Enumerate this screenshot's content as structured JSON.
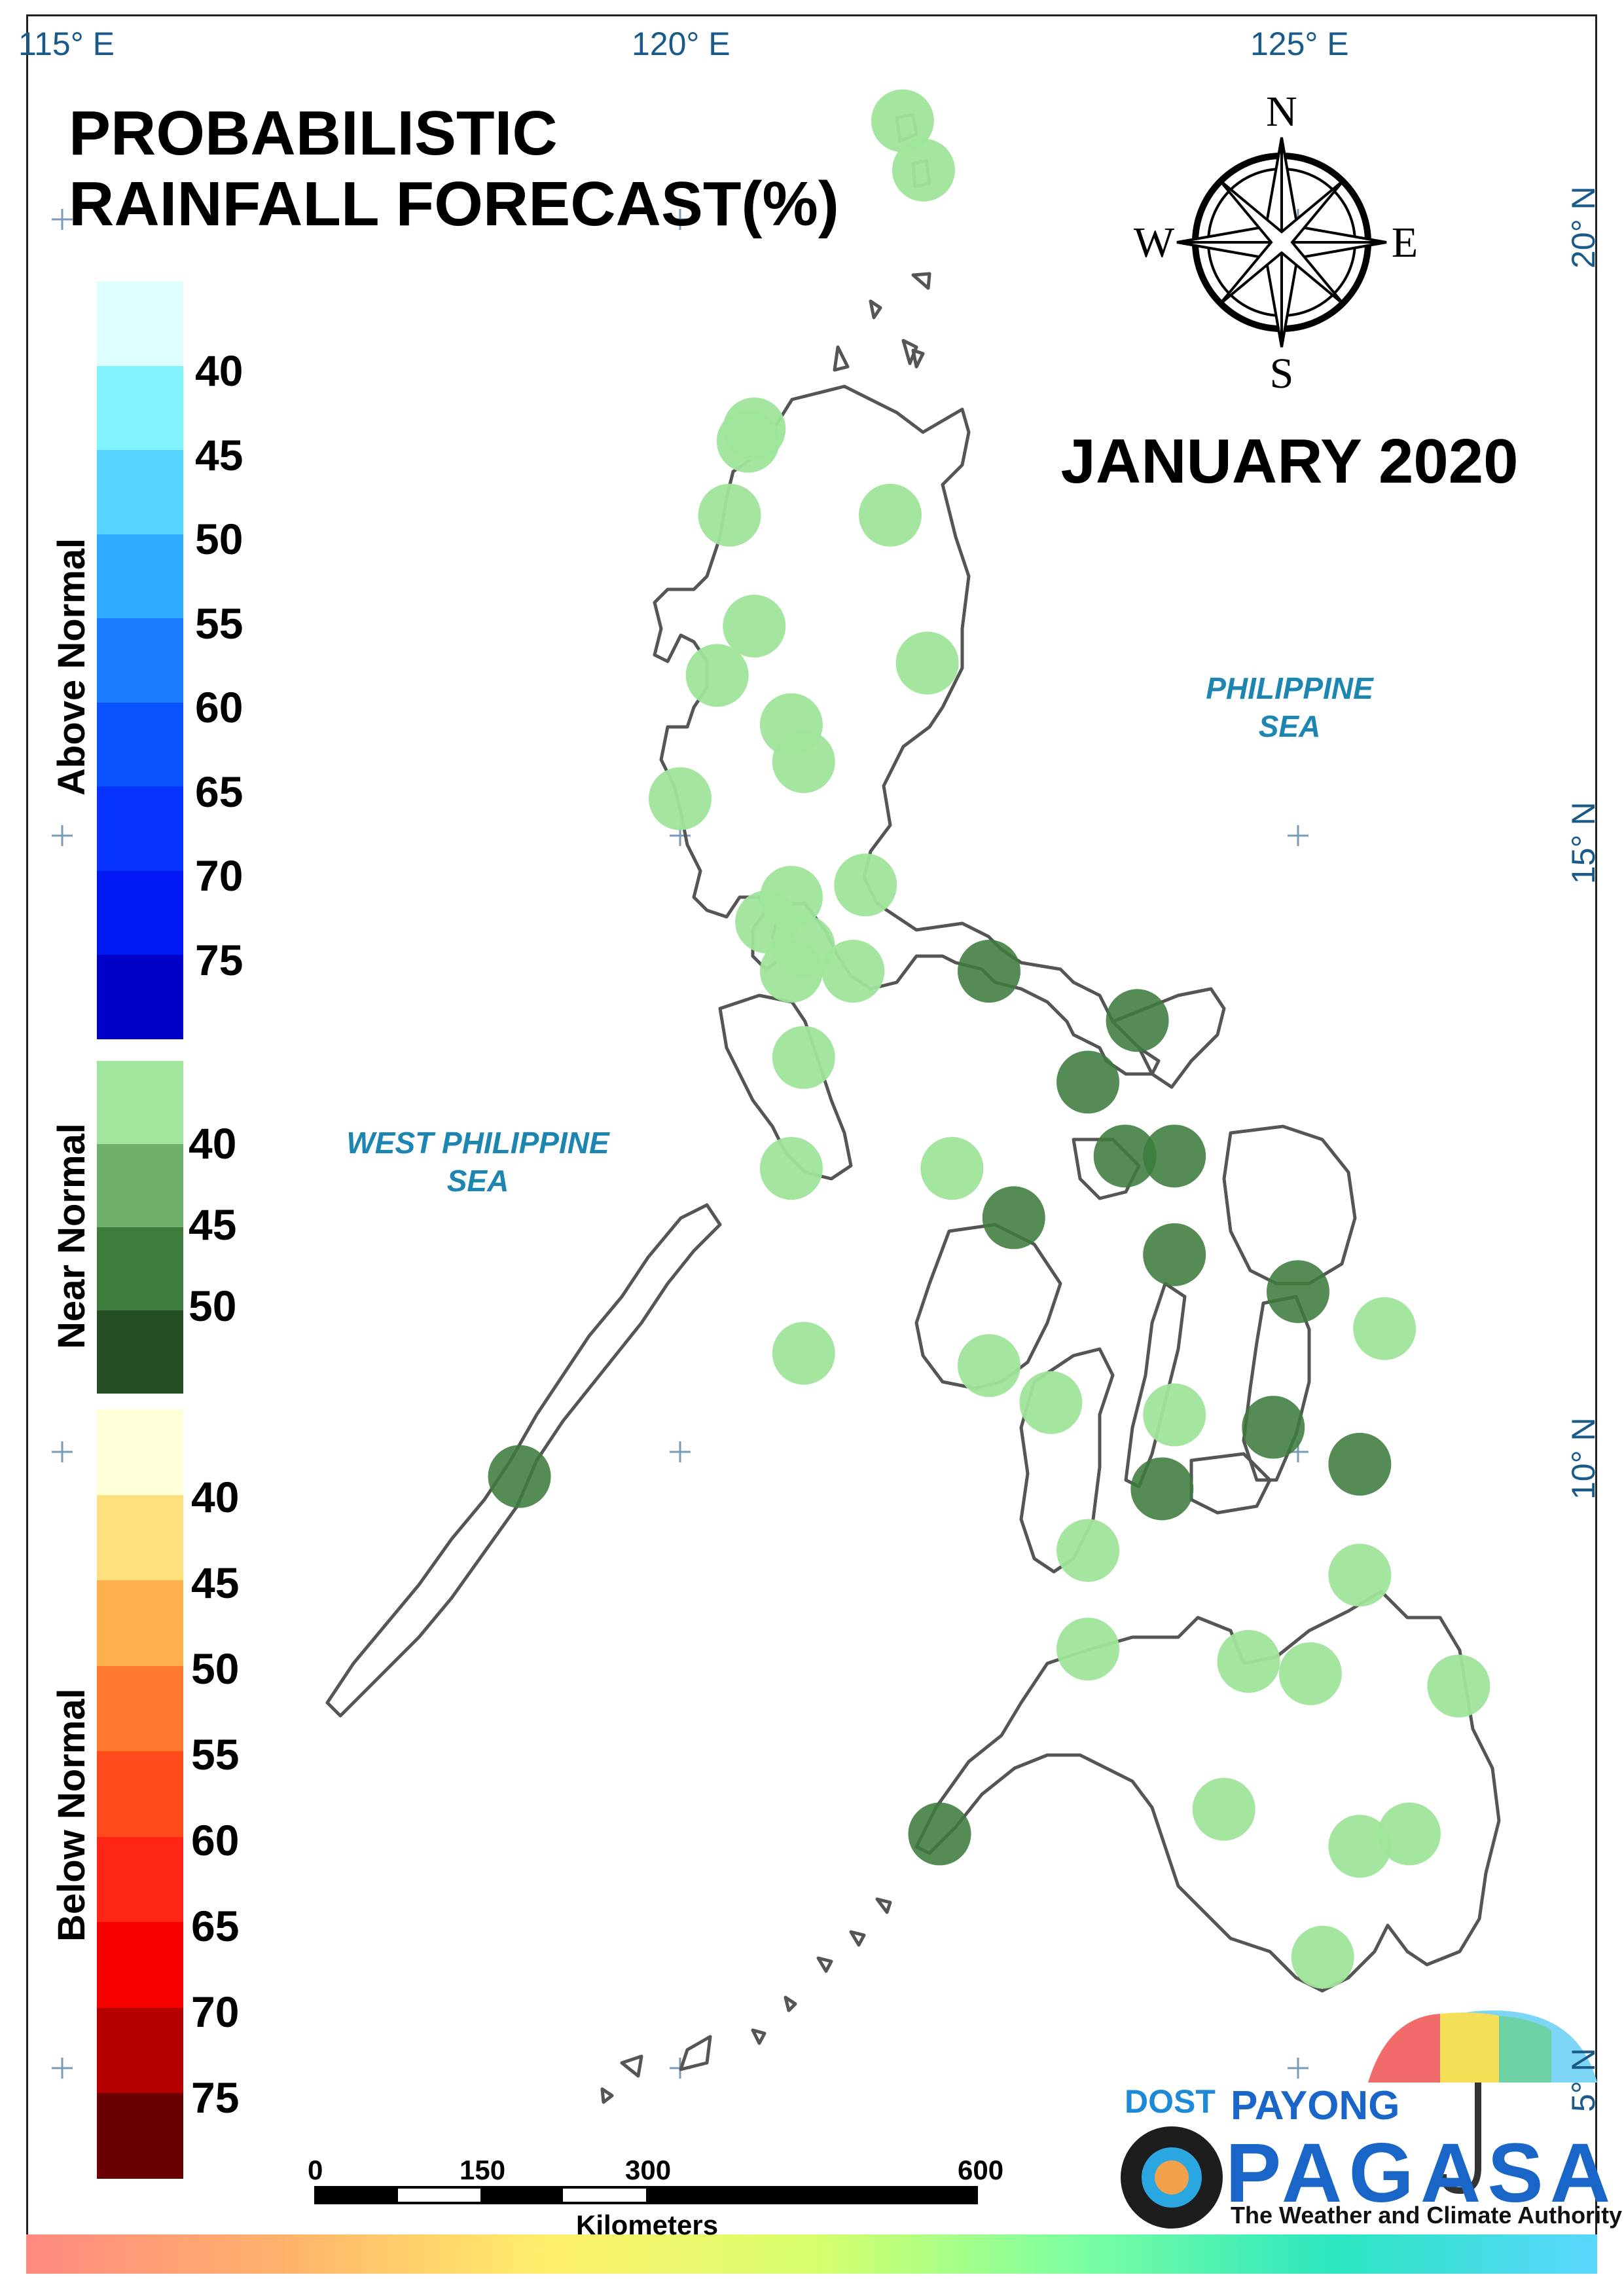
{
  "title_lines": [
    "PROBABILISTIC",
    "RAINFALL FORECAST(%)"
  ],
  "month_label": "JANUARY  2020",
  "compass": {
    "n": "N",
    "s": "S",
    "e": "E",
    "w": "W"
  },
  "sea_labels": {
    "philippine_sea": [
      "PHILIPPINE",
      "SEA"
    ],
    "west_philippine_sea": [
      "WEST PHILIPPINE",
      "SEA"
    ]
  },
  "longitude_labels": [
    "115° E",
    "120° E",
    "125° E"
  ],
  "latitude_labels": [
    "20° N",
    "15° N",
    "10° N",
    "5° N"
  ],
  "legend": {
    "above_normal": {
      "title": "Above Normal",
      "ticks": [
        "40",
        "45",
        "50",
        "55",
        "60",
        "65",
        "70",
        "75"
      ],
      "colors": [
        "#dfffff",
        "#83f4ff",
        "#55d4ff",
        "#2eaaff",
        "#1a7eff",
        "#0b52ff",
        "#0633ff",
        "#0018f4",
        "#0000c8"
      ]
    },
    "near_normal": {
      "title": "Near Normal",
      "ticks": [
        "40",
        "45",
        "50"
      ],
      "colors": [
        "#9fe59b",
        "#6fb16a",
        "#3e7c3e",
        "#234d22"
      ]
    },
    "below_normal": {
      "title": "Below Normal",
      "ticks": [
        "40",
        "45",
        "50",
        "55",
        "60",
        "65",
        "70",
        "75"
      ],
      "colors": [
        "#ffffd8",
        "#ffe07c",
        "#ffb04d",
        "#ff7a2e",
        "#ff4a1c",
        "#ff2414",
        "#f60000",
        "#b60000",
        "#6a0000"
      ]
    }
  },
  "scale_bar": {
    "ticks": [
      "0",
      "150",
      "300",
      "600"
    ],
    "unit": "Kilometers"
  },
  "logo": {
    "dost": "DOST",
    "payong": "PAYONG",
    "pagasa": "PAGASA",
    "tagline": "The Weather and Climate Authority"
  },
  "station_forecasts": {
    "category": "Near Normal",
    "light_40": [
      {
        "lat": 20.8,
        "lon": 121.8
      },
      {
        "lat": 20.4,
        "lon": 121.97
      },
      {
        "lat": 18.3,
        "lon": 120.6
      },
      {
        "lat": 18.2,
        "lon": 120.55
      },
      {
        "lat": 17.6,
        "lon": 120.4
      },
      {
        "lat": 17.6,
        "lon": 121.7
      },
      {
        "lat": 16.7,
        "lon": 120.6
      },
      {
        "lat": 16.4,
        "lon": 122.0
      },
      {
        "lat": 16.3,
        "lon": 120.3
      },
      {
        "lat": 15.9,
        "lon": 120.9
      },
      {
        "lat": 15.6,
        "lon": 121.0
      },
      {
        "lat": 15.3,
        "lon": 120.0
      },
      {
        "lat": 14.6,
        "lon": 121.5
      },
      {
        "lat": 14.5,
        "lon": 120.9
      },
      {
        "lat": 14.3,
        "lon": 120.7
      },
      {
        "lat": 14.1,
        "lon": 121.0
      },
      {
        "lat": 13.9,
        "lon": 120.9
      },
      {
        "lat": 13.9,
        "lon": 121.4
      },
      {
        "lat": 13.2,
        "lon": 121.0
      },
      {
        "lat": 12.3,
        "lon": 120.9
      },
      {
        "lat": 12.3,
        "lon": 122.2
      },
      {
        "lat": 10.8,
        "lon": 121.0
      },
      {
        "lat": 10.7,
        "lon": 122.5
      },
      {
        "lat": 10.4,
        "lon": 123.0
      },
      {
        "lat": 10.3,
        "lon": 124.0
      },
      {
        "lat": 11.0,
        "lon": 125.7
      },
      {
        "lat": 9.2,
        "lon": 123.3
      },
      {
        "lat": 9.0,
        "lon": 125.5
      },
      {
        "lat": 8.4,
        "lon": 123.3
      },
      {
        "lat": 8.3,
        "lon": 124.6
      },
      {
        "lat": 8.2,
        "lon": 125.1
      },
      {
        "lat": 8.1,
        "lon": 126.3
      },
      {
        "lat": 7.1,
        "lon": 124.4
      },
      {
        "lat": 6.9,
        "lon": 125.9
      },
      {
        "lat": 6.8,
        "lon": 125.5
      },
      {
        "lat": 5.9,
        "lon": 125.2
      }
    ],
    "medium_45": [
      {
        "lat": 13.9,
        "lon": 122.5
      },
      {
        "lat": 13.5,
        "lon": 123.7
      },
      {
        "lat": 13.0,
        "lon": 123.3
      },
      {
        "lat": 12.4,
        "lon": 123.6
      },
      {
        "lat": 12.4,
        "lon": 124.0
      },
      {
        "lat": 11.6,
        "lon": 124.0
      },
      {
        "lat": 11.9,
        "lon": 122.7
      },
      {
        "lat": 11.3,
        "lon": 125.0
      },
      {
        "lat": 10.2,
        "lon": 124.8
      },
      {
        "lat": 9.9,
        "lon": 125.5
      },
      {
        "lat": 9.7,
        "lon": 123.9
      },
      {
        "lat": 9.8,
        "lon": 118.7
      },
      {
        "lat": 6.9,
        "lon": 122.1
      }
    ]
  }
}
